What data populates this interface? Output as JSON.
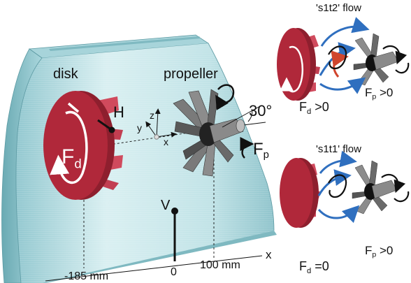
{
  "labels": {
    "disk": "disk",
    "propeller": "propeller",
    "hub_height": "H",
    "force_disk_main": "F",
    "force_disk_main_sub": "d",
    "force_prop_main": "F",
    "force_prop_main_sub": "p",
    "angle": "30°",
    "axis_x": "x",
    "axis_y": "y",
    "axis_z": "z",
    "vertical_probe": "V",
    "x_axis_label": "x",
    "tick_zero": "0",
    "tick_100": "100 mm",
    "tick_m185": "-185 mm"
  },
  "insets": {
    "s1t2": {
      "title": "'s1t2' flow",
      "fd_main": "F",
      "fd_sub": "d",
      "fd_cond": " >0",
      "fp_main": "F",
      "fp_sub": "p",
      "fp_cond": " >0"
    },
    "s1t1": {
      "title": "'s1t1' flow",
      "fd_main": "F",
      "fd_sub": "d",
      "fd_cond": " =0",
      "fp_main": "F",
      "fp_sub": "p",
      "fp_cond": " >0"
    }
  },
  "colors": {
    "channel_light": "#cfe9ec",
    "channel_mid": "#9fd0d6",
    "channel_dark": "#6fb2bb",
    "disk_red": "#b0283a",
    "disk_red_light": "#e0566a",
    "propeller_grey": "#6e6e6e",
    "arrow_blue": "#2f6fbf",
    "arrow_red": "#d0452d"
  }
}
